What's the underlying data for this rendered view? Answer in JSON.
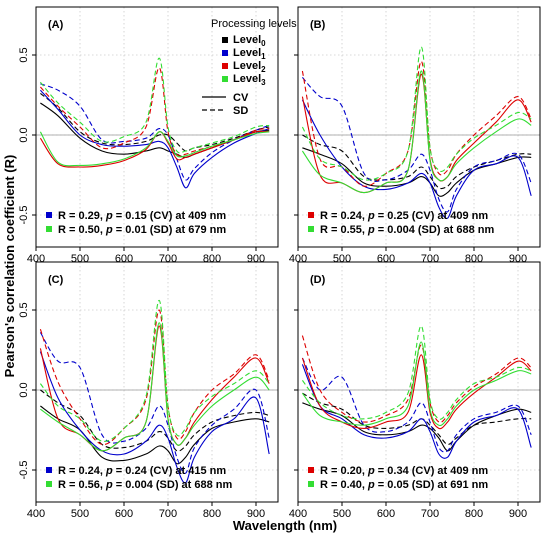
{
  "ylabel": "Pearson's correlation coefficient (R)",
  "xlabel": "Wavelength (nm)",
  "legend": {
    "title": "Processing levels",
    "levels": [
      {
        "base": "Level",
        "sub": "0",
        "color": "#000000"
      },
      {
        "base": "Level",
        "sub": "1",
        "color": "#0000cc"
      },
      {
        "base": "Level",
        "sub": "2",
        "color": "#dd0000"
      },
      {
        "base": "Level",
        "sub": "3",
        "color": "#33dd33"
      }
    ],
    "styles": [
      {
        "label": "CV",
        "dash": "solid"
      },
      {
        "label": "SD",
        "dash": "dashed"
      }
    ]
  },
  "chart_data": [
    {
      "type": "line",
      "panel": "(A)",
      "xlim": [
        400,
        950
      ],
      "ylim": [
        -0.7,
        0.8
      ],
      "xticks": [
        400,
        500,
        600,
        700,
        800,
        900
      ],
      "yticks": [
        -0.5,
        0.0,
        0.5
      ],
      "yticklabels": [
        "-0.5",
        "0.0",
        "0.5"
      ],
      "reference_line": 0,
      "grid": true,
      "stats": [
        {
          "color": "#0000cc",
          "pre": "R = 0.29, ",
          "p": "p",
          "post": " = 0.15 (CV) at 409 nm"
        },
        {
          "color": "#33dd33",
          "pre": "R = 0.50, ",
          "p": "p",
          "post": " = 0.01 (SD) at 679 nm"
        }
      ],
      "x": [
        410,
        450,
        500,
        550,
        600,
        650,
        680,
        700,
        720,
        740,
        760,
        800,
        850,
        900,
        930
      ],
      "series": [
        {
          "level": 0,
          "style": "CV",
          "values": [
            0.2,
            0.12,
            -0.02,
            -0.1,
            -0.12,
            -0.1,
            -0.08,
            -0.1,
            -0.12,
            -0.14,
            -0.12,
            -0.08,
            -0.03,
            0.02,
            0.03
          ]
        },
        {
          "level": 0,
          "style": "SD",
          "values": [
            0.26,
            0.17,
            0.02,
            -0.05,
            -0.06,
            -0.04,
            0.0,
            0.0,
            -0.05,
            -0.1,
            -0.08,
            -0.06,
            -0.02,
            0.03,
            0.05
          ]
        },
        {
          "level": 1,
          "style": "CV",
          "values": [
            0.28,
            0.16,
            0.0,
            -0.06,
            -0.07,
            -0.06,
            -0.04,
            -0.08,
            -0.2,
            -0.33,
            -0.24,
            -0.14,
            -0.05,
            0.01,
            0.04
          ]
        },
        {
          "level": 1,
          "style": "SD",
          "values": [
            0.32,
            0.28,
            0.18,
            -0.03,
            -0.04,
            -0.02,
            0.04,
            0.0,
            -0.15,
            -0.28,
            -0.21,
            -0.11,
            -0.03,
            0.03,
            0.06
          ]
        },
        {
          "level": 2,
          "style": "CV",
          "values": [
            -0.02,
            -0.18,
            -0.2,
            -0.19,
            -0.16,
            -0.09,
            0.02,
            -0.05,
            -0.15,
            -0.14,
            -0.12,
            -0.08,
            -0.03,
            0.02,
            0.02
          ]
        },
        {
          "level": 2,
          "style": "SD",
          "values": [
            0.3,
            0.18,
            0.05,
            -0.08,
            -0.05,
            0.05,
            0.42,
            0.02,
            -0.12,
            -0.12,
            -0.1,
            -0.07,
            -0.03,
            0.03,
            0.04
          ]
        },
        {
          "level": 3,
          "style": "CV",
          "values": [
            0.02,
            -0.17,
            -0.19,
            -0.18,
            -0.15,
            -0.08,
            0.02,
            -0.04,
            -0.13,
            -0.13,
            -0.11,
            -0.07,
            -0.03,
            0.01,
            0.02
          ]
        },
        {
          "level": 3,
          "style": "SD",
          "values": [
            0.33,
            0.2,
            0.08,
            -0.04,
            -0.01,
            0.08,
            0.48,
            0.05,
            -0.1,
            -0.1,
            -0.08,
            -0.05,
            -0.01,
            0.05,
            0.06
          ]
        }
      ]
    },
    {
      "type": "line",
      "panel": "(B)",
      "xlim": [
        400,
        950
      ],
      "ylim": [
        -0.7,
        0.8
      ],
      "xticks": [
        400,
        500,
        600,
        700,
        800,
        900
      ],
      "yticks": [
        -0.5,
        0.0,
        0.5
      ],
      "yticklabels": [
        "",
        "",
        ""
      ],
      "reference_line": 0,
      "grid": true,
      "stats": [
        {
          "color": "#dd0000",
          "pre": "R = 0.24, ",
          "p": "p",
          "post": " = 0.25 (CV) at 409 nm"
        },
        {
          "color": "#33dd33",
          "pre": "R = 0.55, ",
          "p": "p",
          "post": " = 0.004 (SD) at 688 nm"
        }
      ],
      "x": [
        410,
        450,
        500,
        550,
        600,
        650,
        680,
        700,
        720,
        740,
        760,
        800,
        850,
        900,
        930
      ],
      "series": [
        {
          "level": 0,
          "style": "CV",
          "values": [
            -0.08,
            -0.12,
            -0.18,
            -0.3,
            -0.32,
            -0.3,
            -0.26,
            -0.3,
            -0.38,
            -0.36,
            -0.3,
            -0.22,
            -0.18,
            -0.14,
            -0.14
          ]
        },
        {
          "level": 0,
          "style": "SD",
          "values": [
            0.0,
            -0.06,
            -0.1,
            -0.26,
            -0.28,
            -0.26,
            -0.2,
            -0.26,
            -0.33,
            -0.32,
            -0.26,
            -0.2,
            -0.16,
            -0.12,
            -0.12
          ]
        },
        {
          "level": 1,
          "style": "CV",
          "values": [
            0.22,
            0.0,
            -0.2,
            -0.32,
            -0.34,
            -0.3,
            -0.24,
            -0.3,
            -0.45,
            -0.52,
            -0.38,
            -0.22,
            -0.18,
            -0.14,
            -0.38
          ]
        },
        {
          "level": 1,
          "style": "SD",
          "values": [
            0.36,
            0.24,
            0.18,
            -0.24,
            -0.28,
            -0.22,
            -0.12,
            -0.22,
            -0.4,
            -0.48,
            -0.34,
            -0.2,
            -0.16,
            -0.12,
            -0.3
          ]
        },
        {
          "level": 2,
          "style": "CV",
          "values": [
            0.24,
            -0.25,
            -0.3,
            -0.36,
            -0.3,
            -0.22,
            0.38,
            -0.15,
            -0.28,
            -0.26,
            -0.16,
            -0.05,
            0.08,
            0.22,
            0.08
          ]
        },
        {
          "level": 2,
          "style": "SD",
          "values": [
            0.4,
            -0.15,
            -0.2,
            -0.32,
            -0.24,
            -0.1,
            0.46,
            -0.08,
            -0.24,
            -0.22,
            -0.12,
            0.0,
            0.12,
            0.24,
            0.1
          ]
        },
        {
          "level": 3,
          "style": "CV",
          "values": [
            -0.1,
            -0.25,
            -0.3,
            -0.36,
            -0.3,
            -0.22,
            0.4,
            -0.16,
            -0.28,
            -0.26,
            -0.18,
            -0.08,
            0.02,
            0.1,
            0.06
          ]
        },
        {
          "level": 3,
          "style": "SD",
          "values": [
            0.05,
            -0.15,
            -0.2,
            -0.28,
            -0.24,
            -0.1,
            0.55,
            -0.08,
            -0.22,
            -0.2,
            -0.12,
            -0.02,
            0.06,
            0.14,
            0.1
          ]
        }
      ]
    },
    {
      "type": "line",
      "panel": "(C)",
      "xlim": [
        400,
        950
      ],
      "ylim": [
        -0.7,
        0.8
      ],
      "xticks": [
        400,
        500,
        600,
        700,
        800,
        900
      ],
      "yticks": [
        -0.5,
        0.0,
        0.5
      ],
      "yticklabels": [
        "-0.5",
        "0.0",
        "0.5"
      ],
      "reference_line": 0,
      "grid": true,
      "stats": [
        {
          "color": "#0000cc",
          "pre": "R = 0.24, ",
          "p": "p",
          "post": " = 0.24 (CV) at 415 nm"
        },
        {
          "color": "#33dd33",
          "pre": "R = 0.56, ",
          "p": "p",
          "post": " = 0.004 (SD) at 688 nm"
        }
      ],
      "x": [
        410,
        450,
        500,
        550,
        600,
        650,
        680,
        700,
        720,
        740,
        760,
        800,
        850,
        900,
        930
      ],
      "series": [
        {
          "level": 0,
          "style": "CV",
          "values": [
            -0.1,
            -0.18,
            -0.25,
            -0.42,
            -0.44,
            -0.4,
            -0.35,
            -0.38,
            -0.46,
            -0.42,
            -0.34,
            -0.24,
            -0.2,
            -0.18,
            -0.2
          ]
        },
        {
          "level": 0,
          "style": "SD",
          "values": [
            0.0,
            -0.08,
            -0.16,
            -0.34,
            -0.36,
            -0.32,
            -0.26,
            -0.3,
            -0.38,
            -0.35,
            -0.28,
            -0.2,
            -0.16,
            -0.14,
            -0.16
          ]
        },
        {
          "level": 1,
          "style": "CV",
          "values": [
            0.24,
            -0.05,
            -0.25,
            -0.38,
            -0.4,
            -0.32,
            -0.22,
            -0.3,
            -0.48,
            -0.58,
            -0.42,
            -0.26,
            -0.18,
            -0.05,
            -0.4
          ]
        },
        {
          "level": 1,
          "style": "SD",
          "values": [
            0.36,
            0.18,
            0.14,
            -0.28,
            -0.32,
            -0.24,
            -0.1,
            -0.22,
            -0.42,
            -0.52,
            -0.36,
            -0.22,
            -0.12,
            0.0,
            -0.3
          ]
        },
        {
          "level": 2,
          "style": "CV",
          "values": [
            0.26,
            -0.18,
            -0.28,
            -0.38,
            -0.3,
            -0.2,
            0.4,
            -0.18,
            -0.34,
            -0.3,
            -0.2,
            -0.06,
            0.08,
            0.2,
            0.04
          ]
        },
        {
          "level": 2,
          "style": "SD",
          "values": [
            0.38,
            0.05,
            -0.18,
            -0.34,
            -0.24,
            -0.06,
            0.5,
            -0.1,
            -0.3,
            -0.26,
            -0.14,
            0.0,
            0.1,
            0.22,
            0.06
          ]
        },
        {
          "level": 3,
          "style": "CV",
          "values": [
            -0.12,
            -0.2,
            -0.28,
            -0.38,
            -0.3,
            -0.2,
            0.42,
            -0.18,
            -0.34,
            -0.3,
            -0.22,
            -0.1,
            0.0,
            0.08,
            0.0
          ]
        },
        {
          "level": 3,
          "style": "SD",
          "values": [
            0.04,
            -0.1,
            -0.18,
            -0.32,
            -0.24,
            -0.04,
            0.56,
            -0.1,
            -0.28,
            -0.24,
            -0.14,
            -0.04,
            0.04,
            0.12,
            0.04
          ]
        }
      ]
    },
    {
      "type": "line",
      "panel": "(D)",
      "xlim": [
        400,
        950
      ],
      "ylim": [
        -0.7,
        0.8
      ],
      "xticks": [
        400,
        500,
        600,
        700,
        800,
        900
      ],
      "yticks": [
        -0.5,
        0.0,
        0.5
      ],
      "yticklabels": [
        "",
        "",
        ""
      ],
      "reference_line": 0,
      "grid": true,
      "stats": [
        {
          "color": "#dd0000",
          "pre": "R = 0.20, ",
          "p": "p",
          "post": " = 0.34 (CV) at 409 nm"
        },
        {
          "color": "#33dd33",
          "pre": "R = 0.40, ",
          "p": "p",
          "post": " = 0.05 (SD) at 691 nm"
        }
      ],
      "x": [
        410,
        450,
        500,
        550,
        600,
        650,
        680,
        700,
        720,
        740,
        760,
        800,
        850,
        900,
        930
      ],
      "series": [
        {
          "level": 0,
          "style": "CV",
          "values": [
            -0.08,
            -0.12,
            -0.16,
            -0.26,
            -0.28,
            -0.26,
            -0.22,
            -0.24,
            -0.3,
            -0.38,
            -0.32,
            -0.22,
            -0.16,
            -0.12,
            -0.14
          ]
        },
        {
          "level": 0,
          "style": "SD",
          "values": [
            -0.02,
            -0.08,
            -0.12,
            -0.22,
            -0.24,
            -0.22,
            -0.18,
            -0.22,
            -0.28,
            -0.34,
            -0.3,
            -0.22,
            -0.2,
            -0.18,
            -0.18
          ]
        },
        {
          "level": 1,
          "style": "CV",
          "values": [
            0.16,
            -0.1,
            -0.18,
            -0.28,
            -0.3,
            -0.26,
            -0.18,
            -0.26,
            -0.4,
            -0.42,
            -0.32,
            -0.2,
            -0.16,
            -0.12,
            -0.36
          ]
        },
        {
          "level": 1,
          "style": "SD",
          "values": [
            0.2,
            0.0,
            0.08,
            -0.22,
            -0.26,
            -0.2,
            -0.08,
            -0.2,
            -0.36,
            -0.38,
            -0.28,
            -0.18,
            -0.14,
            -0.1,
            -0.28
          ]
        },
        {
          "level": 2,
          "style": "CV",
          "values": [
            0.2,
            -0.1,
            -0.2,
            -0.24,
            -0.2,
            -0.14,
            0.22,
            -0.14,
            -0.24,
            -0.2,
            -0.12,
            -0.02,
            0.08,
            0.18,
            0.12
          ]
        },
        {
          "level": 2,
          "style": "SD",
          "values": [
            0.34,
            0.0,
            -0.14,
            -0.2,
            -0.16,
            -0.06,
            0.28,
            -0.08,
            -0.2,
            -0.16,
            -0.08,
            0.02,
            0.1,
            0.2,
            0.14
          ]
        },
        {
          "level": 3,
          "style": "CV",
          "values": [
            -0.02,
            -0.16,
            -0.2,
            -0.22,
            -0.18,
            -0.1,
            0.3,
            -0.12,
            -0.22,
            -0.18,
            -0.1,
            0.0,
            0.06,
            0.12,
            0.1
          ]
        },
        {
          "level": 3,
          "style": "SD",
          "values": [
            0.06,
            -0.08,
            -0.16,
            -0.18,
            -0.14,
            -0.02,
            0.4,
            -0.06,
            -0.18,
            -0.14,
            -0.06,
            0.04,
            0.08,
            0.14,
            0.12
          ]
        }
      ]
    }
  ]
}
